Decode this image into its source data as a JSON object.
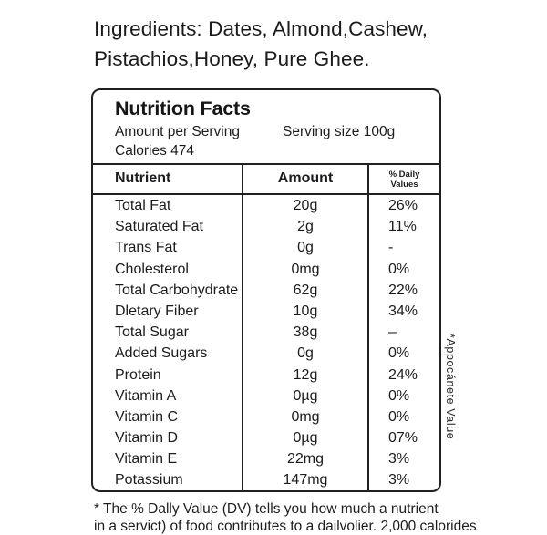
{
  "ingredients": {
    "text": "Ingredients: Dates, Almond,Cashew, Pistachios,Honey, Pure Ghee."
  },
  "label": {
    "title": "Nutrition Facts",
    "amount_per_serving": "Amount per Serving",
    "serving_size": "Serving size 100g",
    "calories": "Calories 474",
    "columns": {
      "nutrient": "Nutrient",
      "amount": "Amount",
      "daily_line1": "% Daily",
      "daily_line2": "Values"
    },
    "rows": [
      {
        "nutrient": "Total Fat",
        "amount": "20g",
        "dv": "26%"
      },
      {
        "nutrient": "Saturated Fat",
        "amount": "2g",
        "dv": "11%"
      },
      {
        "nutrient": "Trans Fat",
        "amount": "0g",
        "dv": "-"
      },
      {
        "nutrient": "Cholesterol",
        "amount": "0mg",
        "dv": "0%"
      },
      {
        "nutrient": "Total Carbohydrate",
        "amount": "62g",
        "dv": "22%"
      },
      {
        "nutrient": "Dletary Fiber",
        "amount": "10g",
        "dv": "34%"
      },
      {
        "nutrient": "Total Sugar",
        "amount": "38g",
        "dv": "–"
      },
      {
        "nutrient": "Added Sugars",
        "amount": "0g",
        "dv": "0%"
      },
      {
        "nutrient": "Protein",
        "amount": "12g",
        "dv": "24%"
      },
      {
        "nutrient": "Vitamin A",
        "amount": "0µg",
        "dv": "0%"
      },
      {
        "nutrient": "Vitamin C",
        "amount": "0mg",
        "dv": "0%"
      },
      {
        "nutrient": "Vitamin D",
        "amount": "0µg",
        "dv": "07%"
      },
      {
        "nutrient": "Vitamin E",
        "amount": "22mg",
        "dv": "3%"
      },
      {
        "nutrient": "Potassium",
        "amount": "147mg",
        "dv": "3%"
      }
    ]
  },
  "side_note": {
    "text": "*Appocánete Value"
  },
  "footnote": {
    "line1": "* The % Dally Value (DV) tells you how much a nutrient",
    "line2": "in a servict) of food contributes to a dailvolier. 2,000 calorides"
  },
  "colors": {
    "text": "#1c1c1e",
    "border": "#202022",
    "background": "#ffffff"
  }
}
